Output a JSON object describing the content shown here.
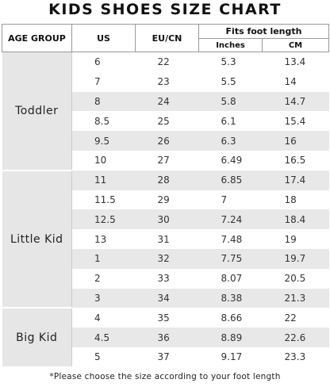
{
  "title": "KIDS SHOES SIZE CHART",
  "table": {
    "headers": {
      "age_group": "AGE GROUP",
      "us": "US",
      "eu": "EU/CN",
      "fits": "Fits foot length",
      "inches": "Inches",
      "cm": "CM"
    },
    "groups": [
      {
        "label": "Toddler",
        "rows": [
          [
            6,
            22,
            5.3,
            13.4
          ],
          [
            7,
            23,
            5.5,
            14
          ],
          [
            8,
            24,
            5.8,
            14.7
          ],
          [
            8.5,
            25,
            6.1,
            15.4
          ],
          [
            9.5,
            26,
            6.3,
            16
          ],
          [
            10,
            27,
            6.49,
            16.5
          ]
        ]
      },
      {
        "label": "Little Kid",
        "rows": [
          [
            11,
            28,
            6.85,
            17.4
          ],
          [
            11.5,
            29,
            7,
            18
          ],
          [
            12.5,
            30,
            7.24,
            18.4
          ],
          [
            13,
            31,
            7.48,
            19
          ],
          [
            1,
            32,
            7.75,
            19.7
          ],
          [
            2,
            33,
            8.07,
            20.5
          ],
          [
            3,
            34,
            8.38,
            21.3
          ]
        ]
      },
      {
        "label": "Big Kid",
        "rows": [
          [
            4,
            35,
            8.66,
            22
          ],
          [
            4.5,
            36,
            8.89,
            22.6
          ],
          [
            5,
            37,
            9.17,
            23.3
          ]
        ]
      }
    ]
  },
  "footnote": "*Please choose the size according to your foot length"
}
